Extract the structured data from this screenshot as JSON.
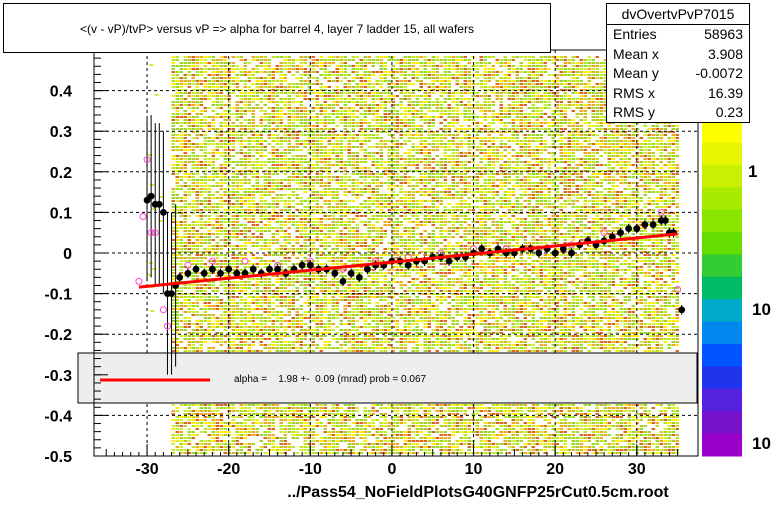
{
  "stats": {
    "name": "dvOvertvPvP7015",
    "rows": [
      {
        "key": "Entries",
        "value": "58963"
      },
      {
        "key": "Mean x",
        "value": "3.908"
      },
      {
        "key": "Mean y",
        "value": "-0.0072"
      },
      {
        "key": "RMS x",
        "value": "16.39"
      },
      {
        "key": "RMS y",
        "value": "0.23"
      }
    ]
  },
  "legend": {
    "fit_text": "alpha =    1.98 +-  0.09 (mrad) prob = 0.067",
    "fit_color": "#ff0000"
  },
  "file_label": "../Pass54_NoFieldPlotsG40GNFP25rCut0.5cm.root",
  "colorbar": {
    "labels": [
      "1",
      "10",
      "10"
    ]
  },
  "chart_data": {
    "type": "scatter",
    "title": "<(v - vP)/tvP> versus   vP => alpha for barrel 4, layer 7 ladder 15, all wafers",
    "xlim": [
      -36.5,
      37.5
    ],
    "ylim": [
      -0.5,
      0.5
    ],
    "x_ticks": [
      -30,
      -20,
      -10,
      0,
      10,
      20,
      30
    ],
    "y_ticks": [
      -0.5,
      -0.4,
      -0.3,
      -0.2,
      -0.1,
      0,
      0.1,
      0.2,
      0.3,
      0.4
    ],
    "y_tick_labels": [
      "-0.5",
      "-0.4",
      "-0.3",
      "-0.2",
      "-0.1",
      "0",
      "0.1",
      "0.2",
      "0.3",
      "0.4"
    ],
    "x_tick_labels": [
      "-30",
      "-20",
      "-10",
      "0",
      "10",
      "20",
      "30"
    ],
    "grid": true,
    "profile_points": [
      [
        -30,
        0.13
      ],
      [
        -29.5,
        0.14
      ],
      [
        -29,
        0.12
      ],
      [
        -28.5,
        0.12
      ],
      [
        -28,
        0.1
      ],
      [
        -27.5,
        -0.1
      ],
      [
        -27,
        -0.1
      ],
      [
        -26.5,
        -0.08
      ],
      [
        -26,
        -0.06
      ],
      [
        -25,
        -0.05
      ],
      [
        -24,
        -0.04
      ],
      [
        -23,
        -0.05
      ],
      [
        -22,
        -0.04
      ],
      [
        -21,
        -0.05
      ],
      [
        -20,
        -0.04
      ],
      [
        -19,
        -0.05
      ],
      [
        -18,
        -0.05
      ],
      [
        -17,
        -0.04
      ],
      [
        -16,
        -0.05
      ],
      [
        -15,
        -0.04
      ],
      [
        -14,
        -0.04
      ],
      [
        -13,
        -0.05
      ],
      [
        -12,
        -0.04
      ],
      [
        -11,
        -0.03
      ],
      [
        -10,
        -0.03
      ],
      [
        -9,
        -0.04
      ],
      [
        -8,
        -0.04
      ],
      [
        -7,
        -0.05
      ],
      [
        -6,
        -0.07
      ],
      [
        -5,
        -0.05
      ],
      [
        -4,
        -0.06
      ],
      [
        -3,
        -0.04
      ],
      [
        -2,
        -0.03
      ],
      [
        -1,
        -0.03
      ],
      [
        0,
        -0.02
      ],
      [
        1,
        -0.02
      ],
      [
        2,
        -0.03
      ],
      [
        3,
        -0.02
      ],
      [
        4,
        -0.02
      ],
      [
        5,
        -0.01
      ],
      [
        6,
        -0.01
      ],
      [
        7,
        -0.02
      ],
      [
        8,
        -0.01
      ],
      [
        9,
        -0.01
      ],
      [
        10,
        0.0
      ],
      [
        11,
        0.01
      ],
      [
        12,
        0.0
      ],
      [
        13,
        0.01
      ],
      [
        14,
        0.0
      ],
      [
        15,
        0.0
      ],
      [
        16,
        0.01
      ],
      [
        17,
        0.01
      ],
      [
        18,
        0.0
      ],
      [
        19,
        0.01
      ],
      [
        20,
        0.0
      ],
      [
        21,
        0.01
      ],
      [
        22,
        0.0
      ],
      [
        23,
        0.02
      ],
      [
        24,
        0.03
      ],
      [
        25,
        0.02
      ],
      [
        26,
        0.03
      ],
      [
        27,
        0.04
      ],
      [
        28,
        0.05
      ],
      [
        29,
        0.06
      ],
      [
        30,
        0.06
      ],
      [
        31,
        0.07
      ],
      [
        32,
        0.07
      ],
      [
        33,
        0.08
      ],
      [
        33.5,
        0.08
      ],
      [
        34,
        0.05
      ],
      [
        34.5,
        0.05
      ],
      [
        35.5,
        -0.14
      ]
    ],
    "open_points": [
      [
        -31,
        -0.07
      ],
      [
        -30.5,
        0.09
      ],
      [
        -30,
        0.23
      ],
      [
        -29.5,
        0.05
      ],
      [
        -29,
        0.05
      ],
      [
        -28,
        -0.14
      ],
      [
        -27.5,
        -0.18
      ],
      [
        -25,
        -0.03
      ],
      [
        -22,
        -0.02
      ],
      [
        -18,
        -0.02
      ],
      [
        -14,
        -0.03
      ],
      [
        -10,
        -0.02
      ],
      [
        -6,
        -0.04
      ],
      [
        -2,
        -0.02
      ],
      [
        2,
        -0.01
      ],
      [
        6,
        0.0
      ],
      [
        10,
        0.01
      ],
      [
        14,
        0.01
      ],
      [
        18,
        0.01
      ],
      [
        22,
        0.02
      ],
      [
        26,
        0.05
      ],
      [
        30,
        0.06
      ],
      [
        33,
        0.1
      ],
      [
        35,
        -0.09
      ]
    ],
    "fit_line": {
      "x": [
        -31,
        35
      ],
      "y": [
        -0.084,
        0.047
      ]
    },
    "density_band": {
      "x_range": [
        -27,
        35
      ]
    }
  }
}
